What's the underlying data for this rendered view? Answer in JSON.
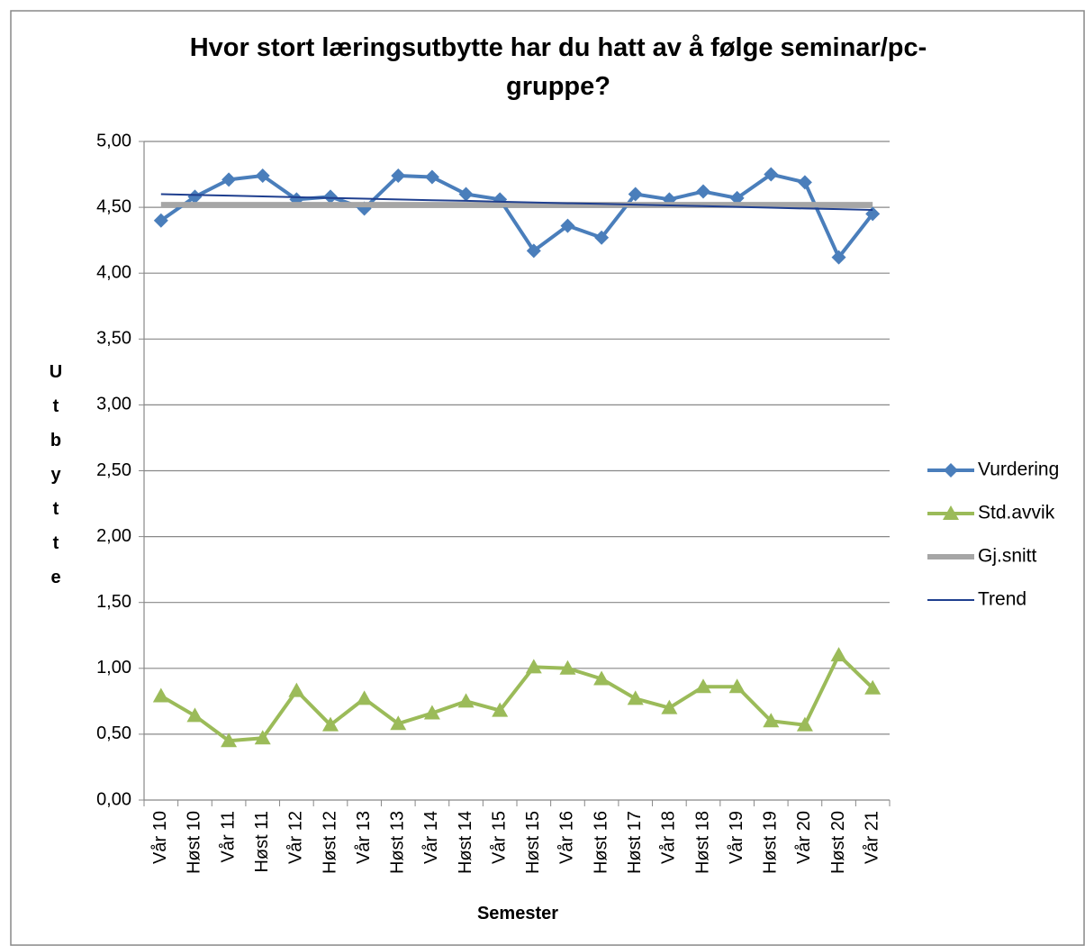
{
  "chart_data": {
    "type": "line",
    "title_lines": [
      "Hvor stort læringsutbytte har du hatt av å følge seminar/pc-",
      "gruppe?"
    ],
    "x_label": "Semester",
    "y_label": "Utbytte",
    "categories": [
      "Vår 10",
      "Høst 10",
      "Vår 11",
      "Høst 11",
      "Vår 12",
      "Høst 12",
      "Vår 13",
      "Høst 13",
      "Vår 14",
      "Høst 14",
      "Vår 15",
      "Høst 15",
      "Vår 16",
      "Høst 16",
      "Høst 17",
      "Vår 18",
      "Høst 18",
      "Vår 19",
      "Høst 19",
      "Vår 20",
      "Høst 20",
      "Vår 21"
    ],
    "series": [
      {
        "name": "Vurdering",
        "color": "#4a7ebb",
        "marker": "diamond",
        "width": 4,
        "values": [
          4.4,
          4.58,
          4.71,
          4.74,
          4.56,
          4.58,
          4.49,
          4.74,
          4.73,
          4.6,
          4.56,
          4.17,
          4.36,
          4.27,
          4.6,
          4.56,
          4.62,
          4.57,
          4.75,
          4.69,
          4.12,
          4.45
        ]
      },
      {
        "name": "Std.avvik",
        "color": "#9bbb59",
        "marker": "triangle",
        "width": 4,
        "values": [
          0.79,
          0.64,
          0.45,
          0.47,
          0.83,
          0.57,
          0.77,
          0.58,
          0.66,
          0.75,
          0.68,
          1.01,
          1.0,
          0.92,
          0.77,
          0.7,
          0.86,
          0.86,
          0.6,
          0.57,
          1.1,
          0.85
        ]
      },
      {
        "name": "Gj.snitt",
        "color": "#a6a6a6",
        "marker": "none",
        "width": 6,
        "values": [
          4.52,
          4.52,
          4.52,
          4.52,
          4.52,
          4.52,
          4.52,
          4.52,
          4.52,
          4.52,
          4.52,
          4.52,
          4.52,
          4.52,
          4.52,
          4.52,
          4.52,
          4.52,
          4.52,
          4.52,
          4.52,
          4.52
        ]
      },
      {
        "name": "Trend",
        "color": "#1f3f8f",
        "marker": "none",
        "width": 2,
        "values": [
          4.6,
          4.594,
          4.589,
          4.583,
          4.577,
          4.571,
          4.566,
          4.56,
          4.554,
          4.549,
          4.543,
          4.537,
          4.531,
          4.526,
          4.52,
          4.514,
          4.509,
          4.503,
          4.497,
          4.491,
          4.486,
          4.48
        ]
      }
    ],
    "ylim": [
      0,
      5
    ],
    "yticks": [
      {
        "value": 0,
        "label": "0,00"
      },
      {
        "value": 0.5,
        "label": "0,50"
      },
      {
        "value": 1,
        "label": "1,00"
      },
      {
        "value": 1.5,
        "label": "1,50"
      },
      {
        "value": 2,
        "label": "2,00"
      },
      {
        "value": 2.5,
        "label": "2,50"
      },
      {
        "value": 3,
        "label": "3,00"
      },
      {
        "value": 3.5,
        "label": "3,50"
      },
      {
        "value": 4,
        "label": "4,00"
      },
      {
        "value": 4.5,
        "label": "4,50"
      },
      {
        "value": 5,
        "label": "5,00"
      }
    ],
    "grid": true,
    "legend": "right"
  }
}
